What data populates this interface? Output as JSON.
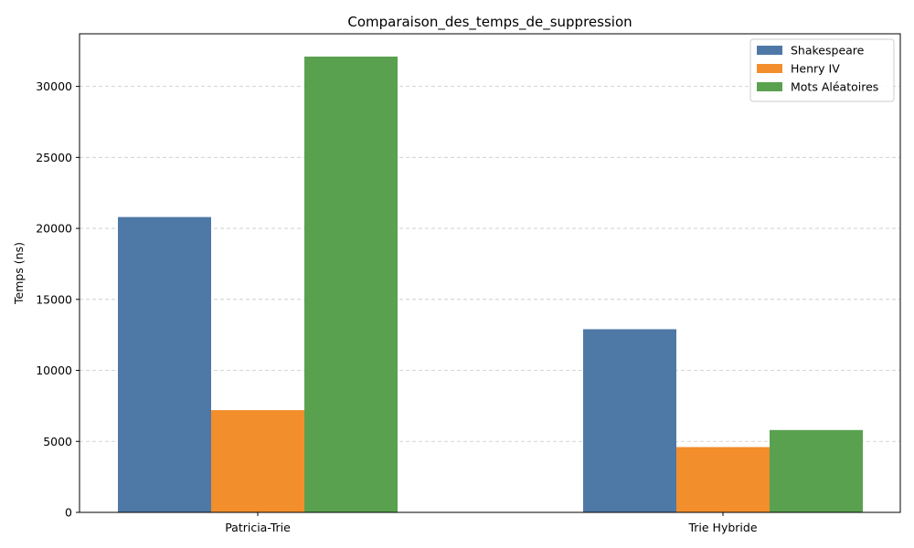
{
  "chart_data": {
    "type": "bar",
    "title": "Comparaison_des_temps_de_suppression",
    "xlabel": "",
    "ylabel": "Temps (ns)",
    "categories": [
      "Patricia-Trie",
      "Trie Hybride"
    ],
    "series": [
      {
        "name": "Shakespeare",
        "values": [
          20800,
          12900
        ],
        "color": "#4e79a7"
      },
      {
        "name": "Henry IV",
        "values": [
          7200,
          4600
        ],
        "color": "#f28e2b"
      },
      {
        "name": "Mots Aléatoires",
        "values": [
          32100,
          5800
        ],
        "color": "#59a14f"
      }
    ],
    "yticks": [
      0,
      5000,
      10000,
      15000,
      20000,
      25000,
      30000
    ],
    "ylim": [
      0,
      33705
    ],
    "grid": "horizontal dashed",
    "legend_position": "top-right"
  }
}
